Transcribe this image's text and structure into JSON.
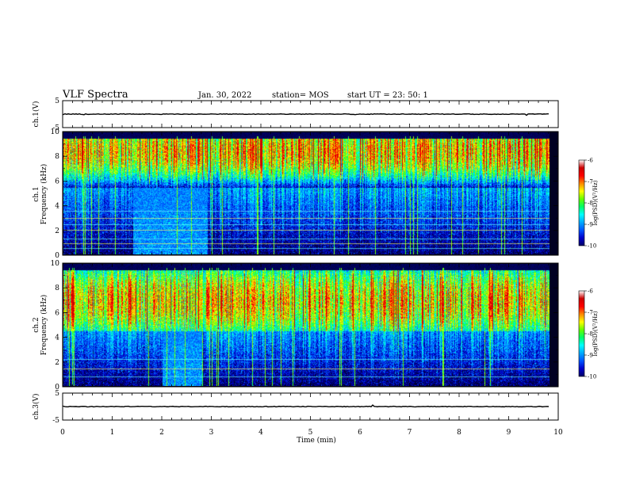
{
  "header": {
    "title": "VLF Spectra",
    "date": "Jan. 30, 2022",
    "station": "station= MOS",
    "start_ut": "start  UT =   23: 50: 1"
  },
  "colors": {
    "colormap": [
      "#00002a",
      "#000066",
      "#0000cc",
      "#0055ff",
      "#00aaff",
      "#00ffff",
      "#00ff66",
      "#66ff00",
      "#ffff00",
      "#ff8800",
      "#ff0000",
      "#cc0000",
      "#ffffff"
    ],
    "trace": "#000000",
    "line_cyan": "#66ffff",
    "line_yellow": "#ffff66"
  },
  "chart_data": [
    {
      "type": "line",
      "name": "ch1-waveform",
      "ylabel": "ch.1(V)",
      "ylim": [
        -5,
        5
      ],
      "yticks": [
        "5",
        "-5"
      ],
      "xlim": [
        0,
        10
      ],
      "level": 0
    },
    {
      "type": "heatmap",
      "name": "ch1-spectrogram",
      "ylabel": "ch.1\nFrequency (kHz)",
      "ylim": [
        0,
        10
      ],
      "yticks": [
        "0",
        "2",
        "4",
        "6",
        "8",
        "10"
      ],
      "xlim": [
        0,
        9.82
      ],
      "emission_band_khz": [
        5.5,
        9.5
      ],
      "emission_peak_khz": 8.5,
      "dark_top_khz": [
        9.5,
        10
      ],
      "lower_band_khz": [
        0,
        4
      ],
      "quiet_interval_min": [
        1.4,
        2.9
      ],
      "narrowband_lines_khz": [
        0.5,
        0.9,
        1.3,
        2.0,
        2.5,
        3.0,
        3.6
      ],
      "colorbar": {
        "label": "log(PSD)(V²/Hz)",
        "range": [
          -10,
          -6
        ],
        "ticks": [
          "-6",
          "-7",
          "-8",
          "-9",
          "-10"
        ]
      }
    },
    {
      "type": "heatmap",
      "name": "ch2-spectrogram",
      "ylabel": "ch.2\nFrequency (kHz)",
      "ylim": [
        0,
        10
      ],
      "yticks": [
        "0",
        "2",
        "4",
        "6",
        "8",
        "10"
      ],
      "xlim": [
        0,
        9.82
      ],
      "emission_band_khz": [
        4.5,
        9.5
      ],
      "emission_peak_khz": 7.0,
      "dark_top_khz": [
        9.5,
        10
      ],
      "lower_band_khz": [
        0,
        4
      ],
      "quiet_interval_min": [
        2.0,
        2.8
      ],
      "narrowband_lines_khz": [
        0.8,
        1.4,
        2.2
      ],
      "colorbar": {
        "label": "log(PSD)(V²/Hz)",
        "range": [
          -10,
          -6
        ],
        "ticks": [
          "-6",
          "-7",
          "-8",
          "-9",
          "-10"
        ]
      }
    },
    {
      "type": "line",
      "name": "ch3-waveform",
      "ylabel": "ch.3(V)",
      "ylim": [
        -5,
        5
      ],
      "yticks": [
        "5",
        "-5"
      ],
      "xlim": [
        0,
        10
      ],
      "level": 0
    }
  ],
  "xaxis": {
    "label": "Time (min)",
    "ticks": [
      "0",
      "1",
      "2",
      "3",
      "4",
      "5",
      "6",
      "7",
      "8",
      "9",
      "10"
    ],
    "xlim": [
      0,
      10
    ]
  }
}
